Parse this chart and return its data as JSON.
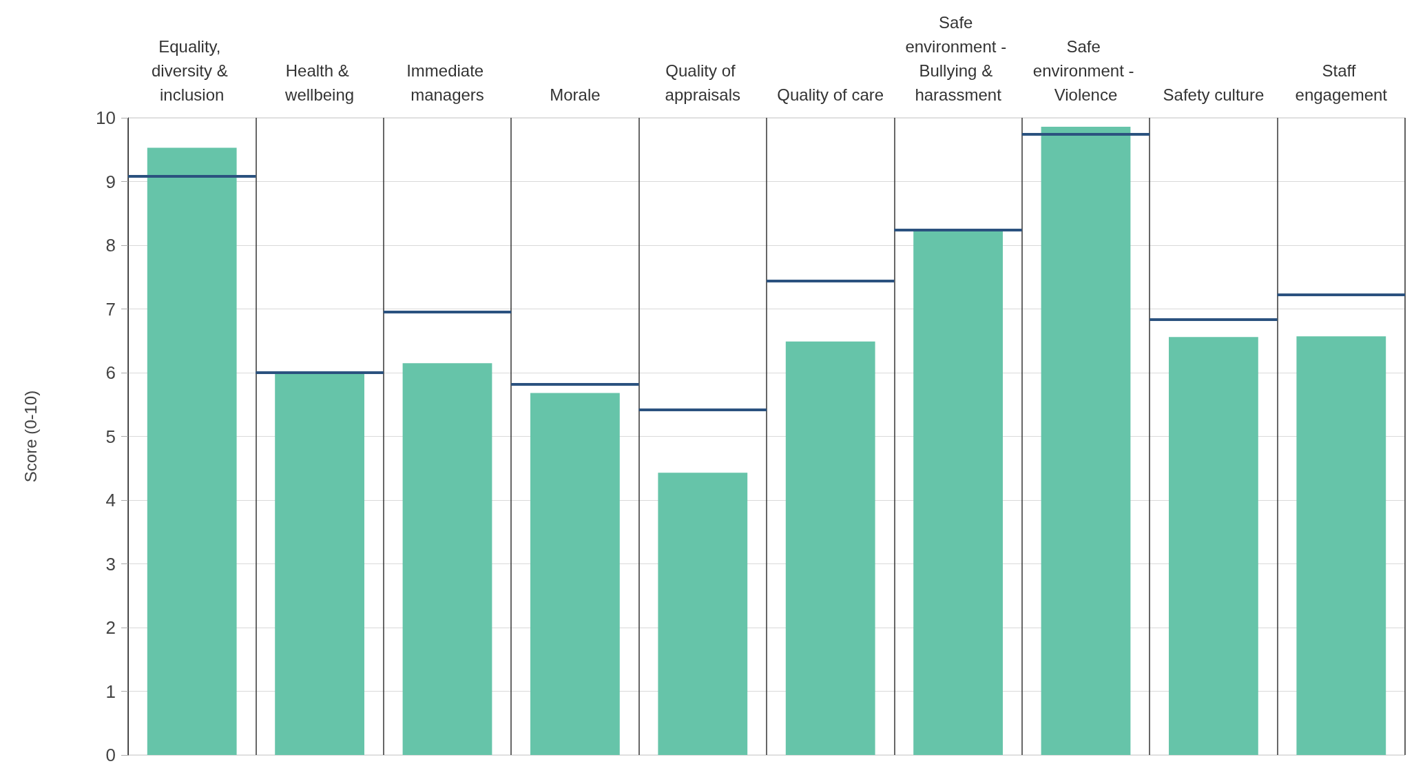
{
  "chart_data": {
    "type": "bar",
    "ylabel": "Score (0-10)",
    "categories": [
      "Equality, diversity & inclusion",
      "Health & wellbeing",
      "Immediate managers",
      "Morale",
      "Quality of appraisals",
      "Quality of care",
      "Safe environment - Bullying & harassment",
      "Safe environment - Violence",
      "Safety culture",
      "Staff engagement"
    ],
    "values": [
      9.53,
      6.0,
      6.15,
      5.68,
      4.43,
      6.49,
      8.22,
      9.86,
      6.56,
      6.57
    ],
    "color": "#66c4a9",
    "ref_lines": [
      {
        "axis": "y",
        "value": 9.08,
        "color": "#2b527f"
      },
      {
        "axis": "y",
        "value": 6.0,
        "color": "#2b527f"
      },
      {
        "axis": "y",
        "value": 6.95,
        "color": "#2b527f"
      },
      {
        "axis": "y",
        "value": 5.82,
        "color": "#2b527f"
      },
      {
        "axis": "y",
        "value": 5.42,
        "color": "#2b527f"
      },
      {
        "axis": "y",
        "value": 7.44,
        "color": "#2b527f"
      },
      {
        "axis": "y",
        "value": 8.24,
        "color": "#2b527f"
      },
      {
        "axis": "y",
        "value": 9.74,
        "color": "#2b527f"
      },
      {
        "axis": "y",
        "value": 6.83,
        "color": "#2b527f"
      },
      {
        "axis": "y",
        "value": 7.22,
        "color": "#2b527f"
      }
    ],
    "ylim": [
      0,
      10
    ],
    "yticks": [
      0,
      1,
      2,
      3,
      4,
      5,
      6,
      7,
      8,
      9,
      10
    ],
    "grid": true
  }
}
